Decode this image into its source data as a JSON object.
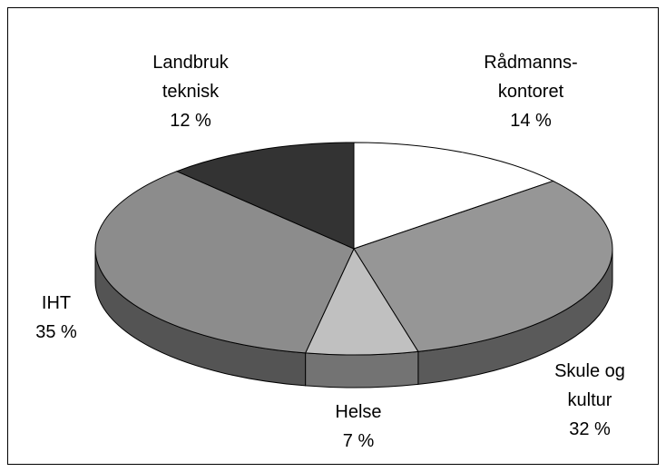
{
  "chart_data": {
    "type": "pie3d",
    "categories": [
      "Rådmanns-\nkontoret",
      "Skule og\nkultur",
      "Helse",
      "IHT",
      "Landbruk\nteknisk"
    ],
    "values": [
      14,
      32,
      7,
      35,
      12
    ],
    "value_labels": [
      "14 %",
      "32 %",
      "7 %",
      "35 %",
      "12 %"
    ],
    "colors": [
      "#ffffff",
      "#969696",
      "#c0c0c0",
      "#8c8c8c",
      "#333333"
    ]
  }
}
